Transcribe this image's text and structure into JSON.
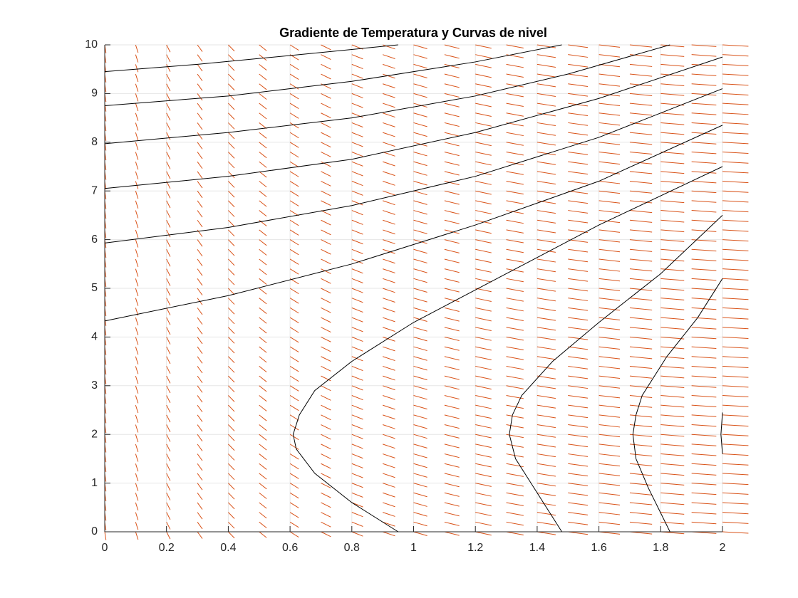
{
  "chart_data": {
    "type": "contour-quiver",
    "title": "Gradiente de Temperatura y Curvas de nivel",
    "xlim": [
      0,
      2
    ],
    "ylim": [
      0,
      10
    ],
    "xticks": [
      0,
      0.2,
      0.4,
      0.6,
      0.8,
      1,
      1.2,
      1.4,
      1.6,
      1.8,
      2
    ],
    "yticks": [
      0,
      1,
      2,
      3,
      4,
      5,
      6,
      7,
      8,
      9,
      10
    ],
    "grid": true,
    "contour_color": "#000000",
    "contours": [
      {
        "x": [
          0,
          0.3,
          0.6,
          0.95
        ],
        "y": [
          9.45,
          9.6,
          9.78,
          10
        ]
      },
      {
        "x": [
          0,
          0.4,
          0.8,
          1.2,
          1.48
        ],
        "y": [
          8.75,
          8.95,
          9.25,
          9.65,
          10
        ]
      },
      {
        "x": [
          0,
          0.4,
          0.8,
          1.2,
          1.5,
          1.83
        ],
        "y": [
          7.97,
          8.2,
          8.5,
          8.95,
          9.4,
          10
        ]
      },
      {
        "x": [
          0,
          0.4,
          0.8,
          1.2,
          1.6,
          2
        ],
        "y": [
          7.05,
          7.3,
          7.65,
          8.2,
          8.9,
          9.75
        ]
      },
      {
        "x": [
          0,
          0.4,
          0.8,
          1.2,
          1.6,
          2
        ],
        "y": [
          5.93,
          6.25,
          6.7,
          7.3,
          8.1,
          9.1
        ]
      },
      {
        "x": [
          0,
          0.4,
          0.8,
          1.2,
          1.6,
          2
        ],
        "y": [
          4.33,
          4.85,
          5.5,
          6.3,
          7.2,
          8.35
        ]
      },
      {
        "x": [
          0.95,
          0.8,
          0.68,
          0.62,
          0.61,
          0.63,
          0.68,
          0.8,
          1,
          1.3,
          1.6,
          2
        ],
        "y": [
          0,
          0.6,
          1.2,
          1.7,
          2,
          2.4,
          2.9,
          3.5,
          4.3,
          5.3,
          6.3,
          7.5
        ]
      },
      {
        "x": [
          1.48,
          1.4,
          1.33,
          1.31,
          1.32,
          1.35,
          1.45,
          1.6,
          1.8,
          2
        ],
        "y": [
          0,
          0.8,
          1.5,
          2,
          2.4,
          2.8,
          3.5,
          4.3,
          5.3,
          6.5
        ]
      },
      {
        "x": [
          1.83,
          1.76,
          1.72,
          1.71,
          1.72,
          1.74,
          1.82,
          1.92,
          2
        ],
        "y": [
          0,
          0.9,
          1.5,
          2,
          2.4,
          2.8,
          3.6,
          4.4,
          5.2
        ]
      },
      {
        "x": [
          2,
          1.995,
          2
        ],
        "y": [
          1.6,
          2,
          2.45
        ]
      }
    ],
    "quiver": {
      "color": "#d95319",
      "x": [
        0,
        0.1,
        0.2,
        0.3,
        0.4,
        0.5,
        0.6,
        0.7,
        0.8,
        0.9,
        1,
        1.1,
        1.2,
        1.3,
        1.4,
        1.5,
        1.6,
        1.7,
        1.8,
        1.9,
        2
      ],
      "y": [
        0,
        0.2,
        0.4,
        0.6,
        0.8,
        1,
        1.2,
        1.4,
        1.6,
        1.8,
        2,
        2.2,
        2.4,
        2.6,
        2.8,
        3,
        3.2,
        3.4,
        3.6,
        3.8,
        4,
        4.2,
        4.4,
        4.6,
        4.8,
        5,
        5.2,
        5.4,
        5.6,
        5.8,
        6,
        6.2,
        6.4,
        6.6,
        6.8,
        7,
        7.2,
        7.4,
        7.6,
        7.8,
        8,
        8.2,
        8.4,
        8.6,
        8.8,
        9,
        9.2,
        9.4,
        9.6,
        9.8,
        10
      ],
      "u": [
        0.004,
        0.008,
        0.012,
        0.016,
        0.02,
        0.024,
        0.028,
        0.032,
        0.036,
        0.04,
        0.044,
        0.048,
        0.052,
        0.056,
        0.06,
        0.064,
        0.068,
        0.072,
        0.076,
        0.08,
        0.084
      ],
      "v": [
        -0.17,
        -0.16,
        -0.15,
        -0.14,
        -0.13,
        -0.12,
        -0.11,
        -0.1,
        -0.09,
        -0.085,
        -0.08,
        -0.075,
        -0.07,
        -0.065,
        -0.06,
        -0.055,
        -0.05,
        -0.045,
        -0.04,
        -0.035,
        -0.03
      ]
    }
  }
}
